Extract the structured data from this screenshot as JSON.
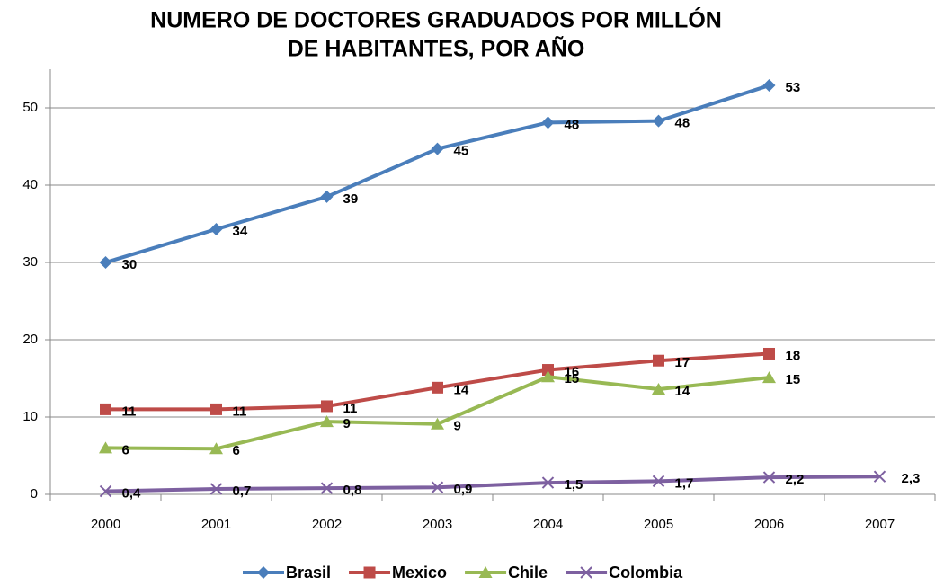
{
  "chart_data": {
    "type": "line",
    "title": [
      "NUMERO DE DOCTORES GRADUADOS POR MILLÓN",
      "DE HABITANTES,  POR AÑO"
    ],
    "categories": [
      "2000",
      "2001",
      "2002",
      "2003",
      "2004",
      "2005",
      "2006",
      "2007"
    ],
    "series": [
      {
        "name": "Brasil",
        "color": "#4a7ebb",
        "marker": "diamond",
        "values": [
          30,
          34.3,
          38.5,
          44.7,
          48.1,
          48.3,
          52.9,
          null
        ],
        "value_labels": [
          "30",
          "34",
          "39",
          "45",
          "48",
          "48",
          "53",
          null
        ]
      },
      {
        "name": "Mexico",
        "color": "#be4b48",
        "marker": "square",
        "values": [
          11,
          11,
          11.4,
          13.8,
          16.1,
          17.3,
          18.2,
          null
        ],
        "value_labels": [
          "11",
          "11",
          "11",
          "14",
          "16",
          "17",
          "18",
          null
        ]
      },
      {
        "name": "Chile",
        "color": "#98b954",
        "marker": "triangle",
        "values": [
          6,
          5.9,
          9.4,
          9.1,
          15.2,
          13.6,
          15.1,
          null
        ],
        "value_labels": [
          "6",
          "6",
          "9",
          "9",
          "15",
          "14",
          "15",
          null
        ]
      },
      {
        "name": "Colombia",
        "color": "#7d60a0",
        "marker": "x",
        "values": [
          0.4,
          0.7,
          0.8,
          0.9,
          1.5,
          1.7,
          2.2,
          2.3
        ],
        "value_labels": [
          "0,4",
          "0,7",
          "0,8",
          "0,9",
          "1,5",
          "1,7",
          "2,2",
          "2,3"
        ]
      }
    ],
    "ylim": [
      0,
      55
    ],
    "yticks": [
      0,
      10,
      20,
      30,
      40,
      50
    ],
    "grid": true,
    "legend": "bottom"
  }
}
